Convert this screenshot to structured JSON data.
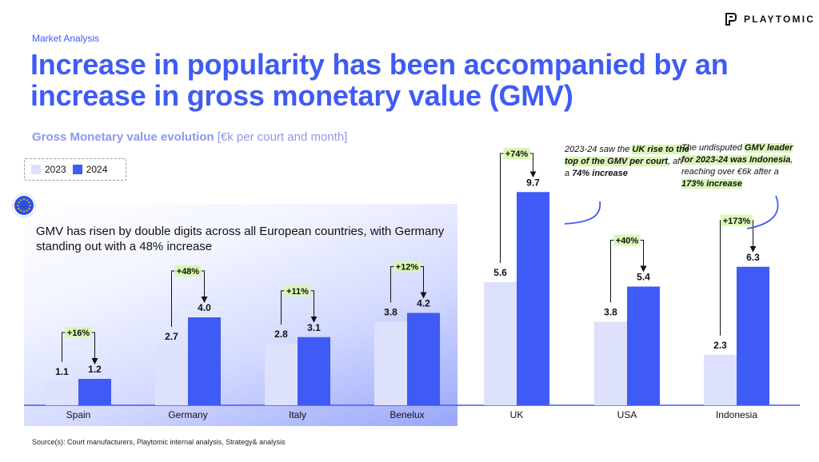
{
  "brand": {
    "name": "PLAYTOMIC",
    "logo_icon": "playtomic-logo-icon"
  },
  "kicker": "Market Analysis",
  "headline": "Increase in popularity has been accompanied by an increase in gross monetary value (GMV)",
  "subtitle": {
    "bold": "Gross Monetary value evolution",
    "unit": "[€k per court and month]"
  },
  "banner": {
    "text": "GMV has risen by double digits across all European countries, with Germany standing out with a 48% increase",
    "icon": "eu-flag-icon"
  },
  "notes": {
    "uk": {
      "p1": "2023-24 saw the ",
      "h1": "UK rise to the top of the GMV per court",
      "p2": ", after a ",
      "b1": "74% increase"
    },
    "indonesia": {
      "p1": "The undisputed ",
      "h1": "GMV leader for 2023-24 was Indonesia",
      "p2": ", reaching  over €6k after a ",
      "h2": "173% increase"
    }
  },
  "source": "Source(s): Court manufacturers, Playtomic internal analysis, Strategy& analysis",
  "colors": {
    "accent": "#3f5bf5",
    "light_bar": "#dde1fb",
    "dark_bar": "#3f5bf5",
    "highlight": "#d9f7b4"
  },
  "chart_data": {
    "type": "bar",
    "categories": [
      "Spain",
      "Germany",
      "Italy",
      "Benelux",
      "UK",
      "USA",
      "Indonesia"
    ],
    "series": [
      {
        "name": "2023",
        "values": [
          1.1,
          2.7,
          2.8,
          3.8,
          5.6,
          3.8,
          2.3
        ],
        "labels": [
          "1.1",
          "2.7",
          "2.8",
          "3.8",
          "5.6",
          "3.8",
          "2.3"
        ]
      },
      {
        "name": "2024",
        "values": [
          1.2,
          4.0,
          3.1,
          4.2,
          9.7,
          5.4,
          6.3
        ],
        "labels": [
          "1.2",
          "4.0",
          "3.1",
          "4.2",
          "9.7",
          "5.4",
          "6.3"
        ]
      }
    ],
    "growth_labels": [
      "+16%",
      "+48%",
      "+11%",
      "+12%",
      "+74%",
      "+40%",
      "+173%"
    ],
    "ylim": [
      0,
      10
    ],
    "grid": false,
    "legend_position": "top-left"
  }
}
